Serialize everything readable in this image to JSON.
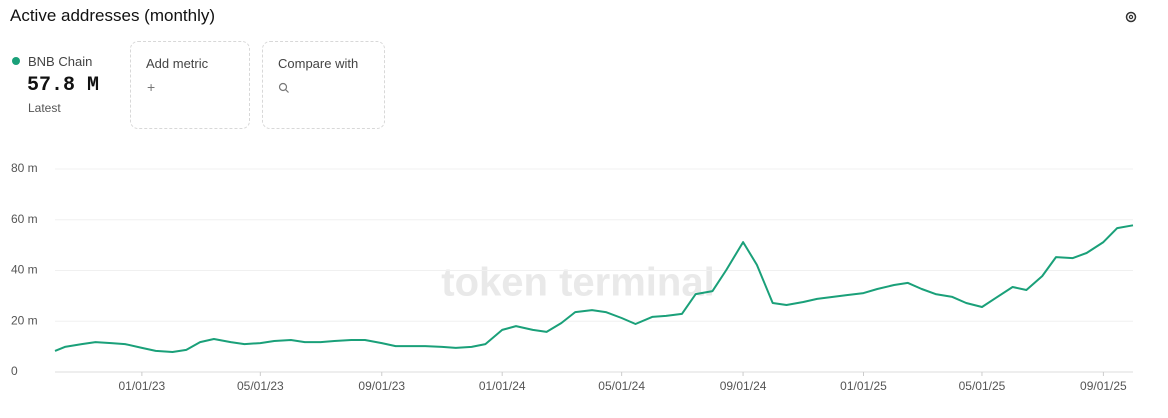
{
  "header": {
    "title": "Active addresses (monthly)",
    "latest_value": "57.8 M",
    "latest_label": "Latest",
    "add_metric": "Add metric",
    "add_icon": "+",
    "compare_with": "Compare with"
  },
  "chart_data": {
    "type": "line",
    "watermark": "token terminal",
    "x": [
      "10/05/22",
      "10/15/22",
      "11/01/22",
      "11/15/22",
      "12/01/22",
      "12/15/22",
      "01/01/23",
      "01/15/23",
      "02/01/23",
      "02/15/23",
      "03/01/23",
      "03/15/23",
      "04/01/23",
      "04/15/23",
      "05/01/23",
      "05/15/23",
      "06/01/23",
      "06/15/23",
      "07/01/23",
      "07/15/23",
      "08/01/23",
      "08/15/23",
      "09/01/23",
      "09/15/23",
      "10/01/23",
      "10/15/23",
      "11/01/23",
      "11/15/23",
      "12/01/23",
      "12/15/23",
      "01/01/24",
      "01/15/24",
      "02/01/24",
      "02/15/24",
      "03/01/24",
      "03/15/24",
      "04/01/24",
      "04/15/24",
      "05/01/24",
      "05/15/24",
      "06/01/24",
      "06/15/24",
      "07/01/24",
      "07/15/24",
      "08/01/24",
      "08/15/24",
      "09/01/24",
      "09/15/24",
      "10/01/24",
      "10/15/24",
      "11/01/24",
      "11/15/24",
      "12/01/24",
      "12/15/24",
      "01/01/25",
      "01/15/25",
      "02/01/25",
      "02/15/25",
      "03/01/25",
      "03/15/25",
      "04/01/25",
      "04/15/25",
      "05/01/25",
      "05/15/25",
      "06/01/25",
      "06/15/25",
      "07/01/25",
      "07/15/25",
      "08/01/25",
      "08/15/25",
      "09/01/25",
      "09/15/25",
      "10/01/25"
    ],
    "series": [
      {
        "name": "BNB Chain",
        "color": "#1aa079",
        "values": [
          8.3,
          9.9,
          11.0,
          11.8,
          11.4,
          11.0,
          9.5,
          8.3,
          7.9,
          8.7,
          11.8,
          13.0,
          11.8,
          11.0,
          11.4,
          12.2,
          12.6,
          11.8,
          11.8,
          12.2,
          12.6,
          12.6,
          11.4,
          10.2,
          10.2,
          10.2,
          9.9,
          9.5,
          9.9,
          11.0,
          16.6,
          18.1,
          16.6,
          15.8,
          19.3,
          23.6,
          24.4,
          23.6,
          21.3,
          18.9,
          21.7,
          22.1,
          22.9,
          30.7,
          31.9,
          40.2,
          51.2,
          42.2,
          27.2,
          26.4,
          27.6,
          28.8,
          29.6,
          30.3,
          31.1,
          32.7,
          34.3,
          35.1,
          32.7,
          30.7,
          29.6,
          27.2,
          25.6,
          29.2,
          33.5,
          32.3,
          37.8,
          45.3,
          44.9,
          46.9,
          51.2,
          56.7,
          57.8
        ]
      }
    ],
    "xlim": [
      "10/05/22",
      "10/01/25"
    ],
    "xticks": [
      "01/01/23",
      "05/01/23",
      "09/01/23",
      "01/01/24",
      "05/01/24",
      "09/01/24",
      "01/01/25",
      "05/01/25",
      "09/01/25"
    ],
    "ylim": [
      0,
      80
    ],
    "yticks": [
      0,
      {
        "value": 20,
        "label": "20 m"
      },
      {
        "value": 40,
        "label": "40 m"
      },
      {
        "value": 60,
        "label": "60 m"
      },
      {
        "value": 80,
        "label": "80 m"
      }
    ],
    "grid": true
  }
}
